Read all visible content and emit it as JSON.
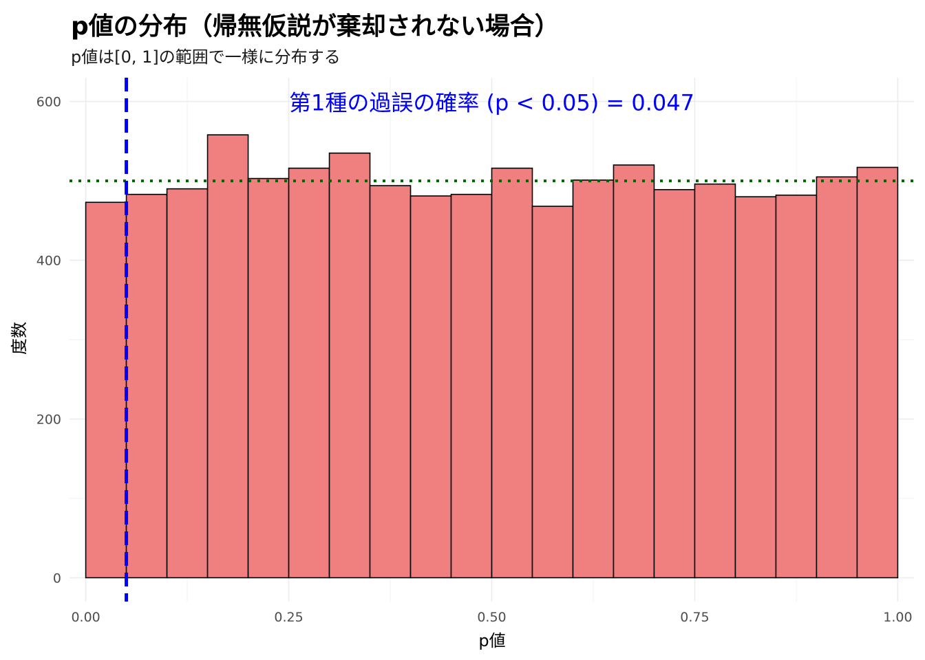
{
  "chart_data": {
    "type": "bar",
    "title": "p値の分布（帰無仮説が棄却されない場合）",
    "subtitle": "p値は[0, 1]の範囲で一様に分布する",
    "xlabel": "p値",
    "ylabel": "度数",
    "xlim": [
      -0.02,
      1.02
    ],
    "ylim": [
      -30,
      630
    ],
    "x_ticks": [
      0.0,
      0.25,
      0.5,
      0.75,
      1.0
    ],
    "x_tick_labels": [
      "0.00",
      "0.25",
      "0.50",
      "0.75",
      "1.00"
    ],
    "y_ticks": [
      0,
      200,
      400,
      600
    ],
    "y_tick_labels": [
      "0",
      "200",
      "400",
      "600"
    ],
    "bin_edges": [
      0.0,
      0.05,
      0.1,
      0.15,
      0.2,
      0.25,
      0.3,
      0.35,
      0.4,
      0.45,
      0.5,
      0.55,
      0.6,
      0.65,
      0.7,
      0.75,
      0.8,
      0.85,
      0.9,
      0.95,
      1.0
    ],
    "values": [
      473,
      483,
      490,
      558,
      503,
      516,
      535,
      494,
      481,
      483,
      516,
      468,
      501,
      520,
      489,
      496,
      480,
      482,
      505,
      517
    ],
    "bar_fill": "#F08080",
    "bar_stroke": "#000000",
    "vline": {
      "x": 0.05,
      "color": "#0000FF",
      "style": "dashed"
    },
    "hline": {
      "y": 500,
      "color": "#006400",
      "style": "dotted"
    },
    "annotation": {
      "text": "第1種の過誤の確率 (p < 0.05) = 0.047",
      "x": 0.5,
      "y": 600,
      "color": "#0000FF"
    },
    "grid": true,
    "legend": "none"
  }
}
